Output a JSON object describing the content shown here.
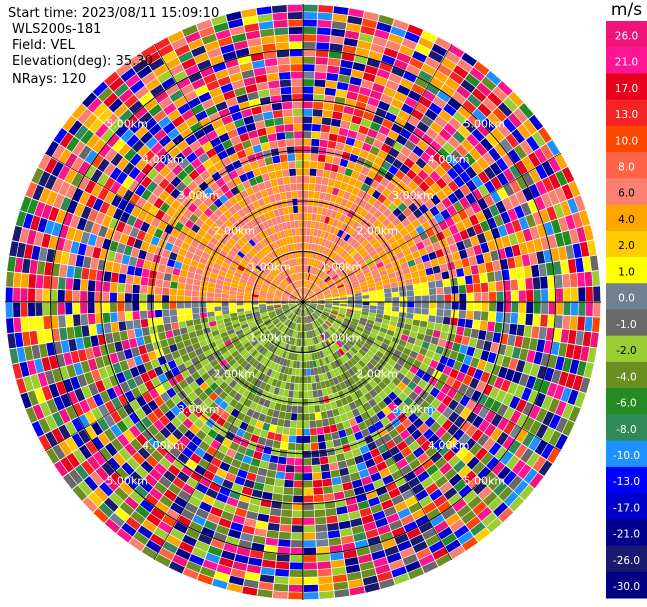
{
  "header": {
    "start_time": "Start time: 2023/08/11 15:09:10",
    "device": "WLS200s-181",
    "field": "Field: VEL",
    "elevation": "Elevation(deg): 35.30",
    "nrays": "NRays: 120"
  },
  "colorbar": {
    "unit": "m/s",
    "ticks": [
      "26.0",
      "21.0",
      "17.0",
      "13.0",
      "10.0",
      "8.0",
      "6.0",
      "4.0",
      "2.0",
      "1.0",
      "0.0",
      "-1.0",
      "-2.0",
      "-4.0",
      "-6.0",
      "-8.0",
      "-10.0",
      "-13.0",
      "-17.0",
      "-21.0",
      "-26.0",
      "-30.0"
    ],
    "colors": [
      "#f0147a",
      "#ff1493",
      "#e8001c",
      "#f52424",
      "#ff4500",
      "#ff6347",
      "#fa8072",
      "#ffa500",
      "#ffcc00",
      "#ffff00",
      "#708090",
      "#696969",
      "#9acd32",
      "#6b8e23",
      "#228b22",
      "#2e8b57",
      "#1e90ff",
      "#0000ff",
      "#0000cd",
      "#00008b",
      "#191970",
      "#000080"
    ]
  },
  "chart_data": {
    "type": "heatmap",
    "projection": "polar",
    "field": "VEL",
    "unit": "m/s",
    "nrays": 120,
    "elevation_deg": 35.3,
    "range_rings_km": [
      1.0,
      2.0,
      3.0,
      4.0,
      5.0
    ],
    "ring_labels": [
      "1.00km",
      "2.00km",
      "3.00km",
      "4.00km",
      "5.00km"
    ],
    "vmin": -30.0,
    "vmax": 26.0,
    "sectors": [
      {
        "from_az": 270,
        "to_az": 80,
        "value_range": [
          2.0,
          6.0
        ]
      },
      {
        "from_az": 80,
        "to_az": 100,
        "value_range": [
          -1.0,
          1.0
        ]
      },
      {
        "from_az": 100,
        "to_az": 260,
        "value_range": [
          -6.0,
          -1.0
        ]
      },
      {
        "from_az": 260,
        "to_az": 280,
        "value_range": [
          -1.0,
          1.0
        ]
      }
    ],
    "clean_range_km": 2.5,
    "noise_beyond_km": 3.2
  }
}
